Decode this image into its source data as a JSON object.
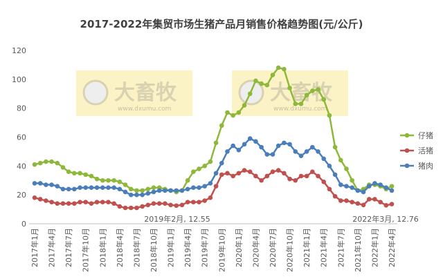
{
  "chart_data": {
    "type": "line",
    "title": "2017-2022年集贸市场生猪产品月销售价格趋势图(元/公斤)",
    "categories": [
      "2017年1月",
      null,
      null,
      "2017年4月",
      null,
      null,
      "2017年7月",
      null,
      null,
      "2017年10月",
      null,
      null,
      "2018年1月",
      null,
      null,
      "2018年4月",
      null,
      null,
      "2018年7月",
      null,
      null,
      "2018年10月",
      null,
      null,
      "2019年1月",
      null,
      null,
      "2019年4月",
      null,
      null,
      "2019年7月",
      null,
      null,
      "2019年10月",
      null,
      null,
      "2020年1月",
      null,
      null,
      "2020年4月",
      null,
      null,
      "2020年7月",
      null,
      null,
      "2020年10月",
      null,
      null,
      "2021年1月",
      null,
      null,
      "2021年4月",
      null,
      null,
      "2021年7月",
      null,
      null,
      "2021年10月",
      null,
      null,
      "2022年1月",
      null,
      null,
      "2022年4月"
    ],
    "series": [
      {
        "name": "仔猪",
        "color": "#8db83a",
        "values": [
          41,
          42,
          43,
          43,
          42,
          39,
          36,
          35,
          35,
          34,
          33,
          31,
          30,
          30,
          30,
          29,
          27,
          24,
          23,
          23,
          24,
          25,
          25,
          24,
          23,
          22,
          23,
          30,
          36,
          38,
          40,
          43,
          56,
          68,
          77,
          75,
          77,
          82,
          90,
          99,
          97,
          96,
          103,
          108,
          107,
          94,
          83,
          83,
          89,
          92,
          93,
          86,
          75,
          53,
          44,
          38,
          30,
          23,
          24,
          27,
          27,
          26,
          24,
          26
        ]
      },
      {
        "name": "活猪",
        "color": "#c0504d",
        "values": [
          18,
          17,
          16,
          15,
          14,
          14,
          14,
          14,
          15,
          15,
          14,
          15,
          15,
          15,
          14,
          12,
          11,
          11,
          11,
          12,
          13,
          14,
          14,
          14,
          13,
          12.55,
          13,
          15,
          15,
          15,
          16,
          18,
          26,
          34,
          35,
          33,
          35,
          37,
          36,
          33,
          30,
          33,
          36,
          37,
          35,
          31,
          30,
          33,
          33,
          36,
          33,
          29,
          24,
          19,
          16,
          16,
          15,
          14,
          13,
          17,
          17,
          15,
          12.76,
          13.6
        ]
      },
      {
        "name": "猪肉",
        "color": "#4a7ebb",
        "values": [
          28,
          28,
          27,
          27,
          26,
          24,
          24,
          24,
          25,
          25,
          25,
          25,
          25,
          25,
          25,
          24,
          22,
          20,
          20,
          20,
          21,
          22,
          23,
          23,
          23,
          23,
          23,
          24,
          25,
          25,
          26,
          28,
          35,
          42,
          50,
          54,
          51,
          55,
          59,
          57,
          53,
          48,
          48,
          54,
          56,
          55,
          50,
          47,
          50,
          53,
          50,
          45,
          40,
          34,
          27,
          26,
          25,
          23,
          22,
          26,
          28,
          27,
          25,
          23
        ]
      }
    ],
    "ylim": [
      0,
      120
    ],
    "yticks": [
      0,
      20,
      40,
      60,
      80,
      100,
      120
    ],
    "grid": false,
    "legend": "right",
    "annotations": [
      {
        "text": "2019年2月, 12.55"
      },
      {
        "text": "2022年3月, 12.76"
      }
    ],
    "watermark": {
      "text": "大畜牧",
      "url": "www.dxumu.com"
    }
  }
}
